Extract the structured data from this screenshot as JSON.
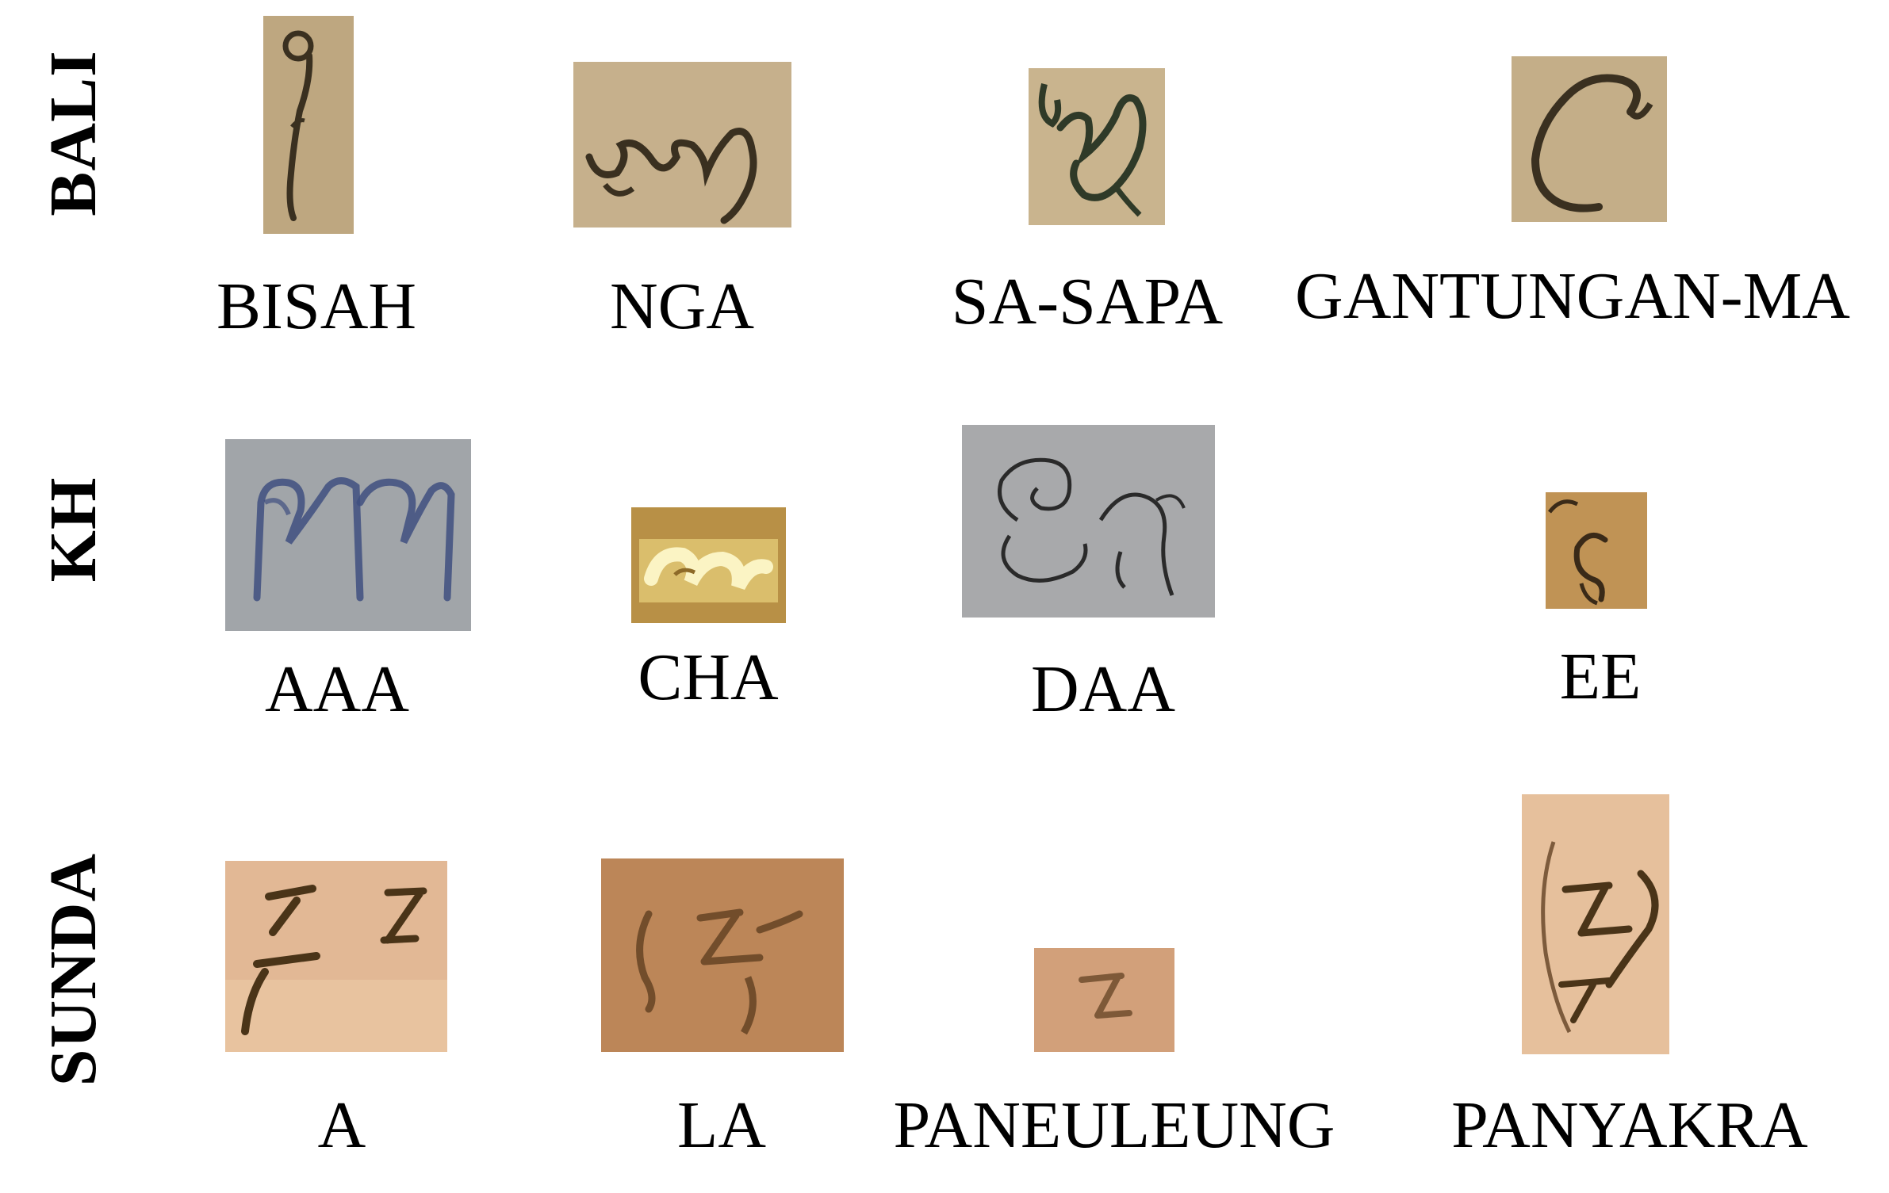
{
  "rows": [
    {
      "label": "BALI",
      "items": [
        {
          "caption": "BISAH",
          "icon": "balinese-bisah-glyph-icon"
        },
        {
          "caption": "NGA",
          "icon": "balinese-nga-glyph-icon"
        },
        {
          "caption": "SA-SAPA",
          "icon": "balinese-sa-sapa-glyph-icon"
        },
        {
          "caption": "GANTUNGAN-MA",
          "icon": "balinese-gantungan-ma-glyph-icon"
        }
      ]
    },
    {
      "label": "KH",
      "items": [
        {
          "caption": "AAA",
          "icon": "khmer-aaa-glyph-icon"
        },
        {
          "caption": "CHA",
          "icon": "khmer-cha-glyph-icon"
        },
        {
          "caption": "DAA",
          "icon": "khmer-daa-glyph-icon"
        },
        {
          "caption": "EE",
          "icon": "khmer-ee-glyph-icon"
        }
      ]
    },
    {
      "label": "SUNDA",
      "items": [
        {
          "caption": "A",
          "icon": "sundanese-a-glyph-icon"
        },
        {
          "caption": "LA",
          "icon": "sundanese-la-glyph-icon"
        },
        {
          "caption": "PANEULEUNG",
          "icon": "sundanese-paneuleung-glyph-icon"
        },
        {
          "caption": "PANYAKRA",
          "icon": "sundanese-panyakra-glyph-icon"
        }
      ]
    }
  ],
  "colors": {
    "palm_leaf_bali": "#c2ab84",
    "palm_leaf_kh_grey": "#a4a7ab",
    "palm_leaf_kh_gold": "#b89046",
    "palm_leaf_kh_brown": "#c09355",
    "palm_leaf_sunda_light": "#e2b895",
    "palm_leaf_sunda_dark": "#c08a5c",
    "ink_dark": "#3a3020",
    "ink_blue": "#3f4f80"
  }
}
